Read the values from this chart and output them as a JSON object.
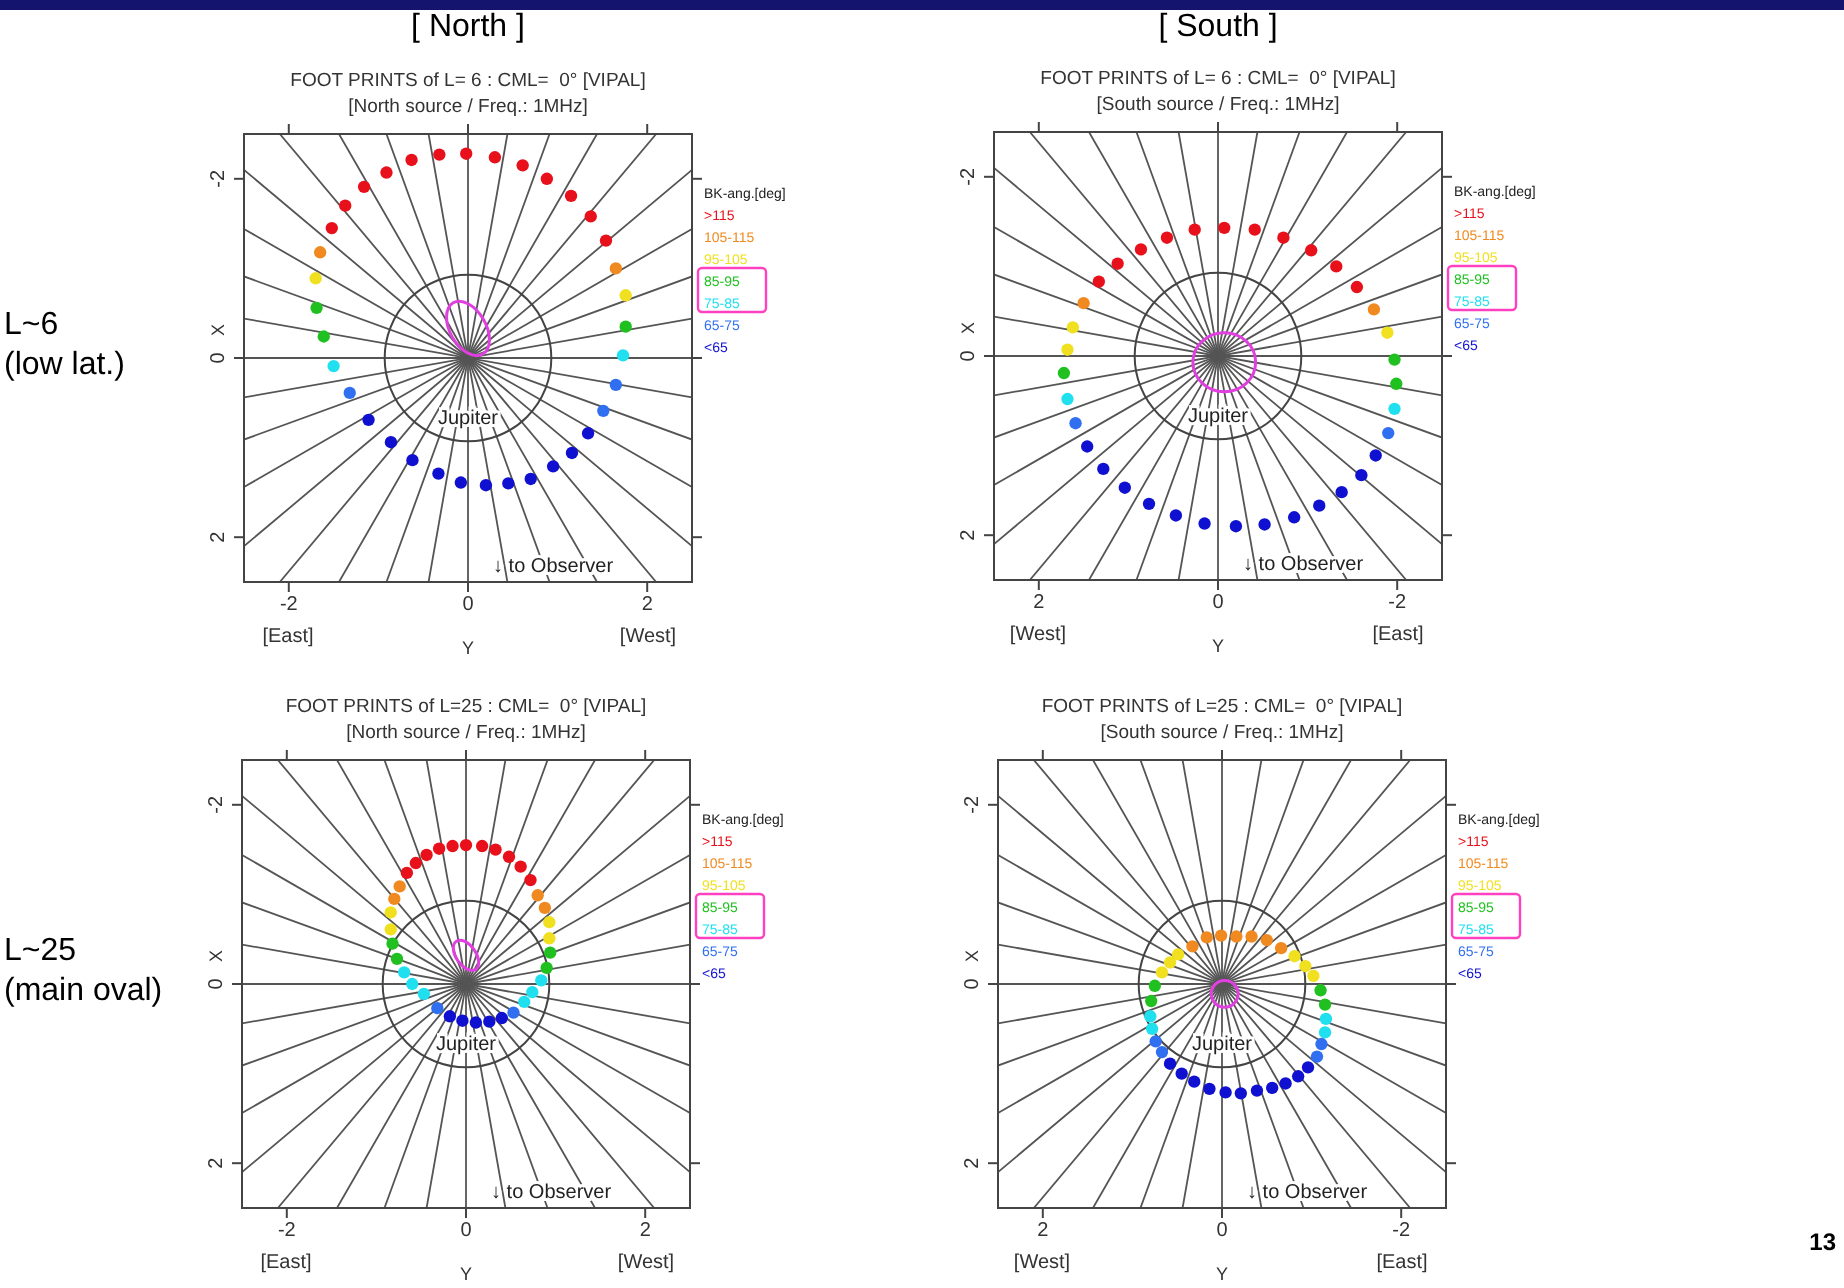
{
  "chart_data": [
    {
      "type": "scatter",
      "title": "FOOT PRINTS of L= 6 : CML=  0° [VIPAL]",
      "subtitle": "[North source / Freq.: 1MHz]",
      "xlabel": "Y",
      "ylabel": "X",
      "xlim": [
        -2.5,
        2.5
      ],
      "ylim": [
        2.5,
        -2.5
      ],
      "xticks": [
        -2,
        0,
        2
      ],
      "yticks": [
        -2,
        0,
        2
      ],
      "legend": "right",
      "legend_title": "BK-ang.[deg]",
      "marker": "circle",
      "annotations": [
        "[East]",
        "[West]",
        "[ North ]",
        "L~6",
        "(low lat.)",
        "Jupiter",
        "↓ to Observer"
      ],
      "series": [
        {
          "type": "line",
          "marker": "none",
          "color": "#555555",
          "x": [
            2.5,
            -2.5
          ],
          "values": [
            0,
            0
          ]
        },
        {
          "type": "line",
          "marker": "none",
          "color": "#555555",
          "x": [
            2.5,
            -2.5
          ],
          "values": [
            0.44,
            -0.44
          ]
        },
        {
          "type": "line",
          "marker": "none",
          "color": "#555555",
          "x": [
            2.5,
            -2.5
          ],
          "values": [
            0.91,
            -0.91
          ]
        },
        {
          "type": "line",
          "marker": "none",
          "color": "#555555",
          "x": [
            2.5,
            -2.5
          ],
          "values": [
            1.44,
            -1.44
          ]
        },
        {
          "type": "line",
          "marker": "none",
          "color": "#555555",
          "x": [
            2.5,
            -2.5
          ],
          "values": [
            2.1,
            -2.1
          ]
        },
        {
          "type": "line",
          "marker": "none",
          "color": "#555555",
          "x": [
            2.1,
            -2.1
          ],
          "values": [
            2.5,
            -2.5
          ]
        },
        {
          "type": "line",
          "marker": "none",
          "color": "#555555",
          "x": [
            1.44,
            -1.44
          ],
          "values": [
            2.5,
            -2.5
          ]
        },
        {
          "type": "line",
          "marker": "none",
          "color": "#555555",
          "x": [
            0.91,
            -0.91
          ],
          "values": [
            2.5,
            -2.5
          ]
        },
        {
          "type": "line",
          "marker": "none",
          "color": "#555555",
          "x": [
            0.44,
            -0.44
          ],
          "values": [
            2.5,
            -2.5
          ]
        },
        {
          "type": "line",
          "marker": "none",
          "color": "#555555",
          "x": [
            0,
            0
          ],
          "values": [
            2.5,
            -2.5
          ]
        },
        {
          "type": "line",
          "marker": "none",
          "color": "#555555",
          "x": [
            -0.44,
            0.44
          ],
          "values": [
            2.5,
            -2.5
          ]
        },
        {
          "type": "line",
          "marker": "none",
          "color": "#555555",
          "x": [
            -0.91,
            0.91
          ],
          "values": [
            2.5,
            -2.5
          ]
        },
        {
          "type": "line",
          "marker": "none",
          "color": "#555555",
          "x": [
            -1.44,
            1.44
          ],
          "values": [
            2.5,
            -2.5
          ]
        },
        {
          "type": "line",
          "marker": "none",
          "color": "#555555",
          "x": [
            -2.1,
            2.1
          ],
          "values": [
            2.5,
            -2.5
          ]
        },
        {
          "type": "line",
          "marker": "none",
          "color": "#555555",
          "x": [
            -2.5,
            2.5
          ],
          "values": [
            2.1,
            -2.1
          ]
        },
        {
          "type": "line",
          "marker": "none",
          "color": "#555555",
          "x": [
            -2.5,
            2.5
          ],
          "values": [
            1.44,
            -1.44
          ]
        },
        {
          "type": "line",
          "marker": "none",
          "color": "#555555",
          "x": [
            -2.5,
            2.5
          ],
          "values": [
            0.91,
            -0.91
          ]
        },
        {
          "type": "line",
          "marker": "none",
          "color": "#555555",
          "x": [
            -2.5,
            2.5
          ],
          "values": [
            0.44,
            -0.44
          ]
        },
        {
          "name": ">115",
          "color": "#e8101a",
          "x": [
            -1.52,
            -1.37,
            -1.16,
            -0.91,
            -0.63,
            -0.32,
            -0.02,
            0.3,
            0.61,
            0.88,
            1.15,
            1.37,
            1.54
          ],
          "values": [
            -1.45,
            -1.7,
            -1.91,
            -2.07,
            -2.21,
            -2.27,
            -2.28,
            -2.24,
            -2.15,
            -2.0,
            -1.81,
            -1.58,
            -1.31
          ]
        },
        {
          "name": "105-115",
          "color": "#f08a20",
          "x": [
            -1.65,
            1.65
          ],
          "values": [
            -1.18,
            -1.0
          ]
        },
        {
          "name": "95-105",
          "color": "#f0e020",
          "x": [
            -1.7,
            1.76
          ],
          "values": [
            -0.89,
            -0.7
          ]
        },
        {
          "name": "85-95",
          "color": "#20c020",
          "x": [
            -1.69,
            -1.61,
            1.76
          ],
          "values": [
            -0.56,
            -0.24,
            -0.35
          ]
        },
        {
          "name": "75-85",
          "color": "#20e0f0",
          "x": [
            -1.5,
            1.73
          ],
          "values": [
            0.09,
            -0.03
          ]
        },
        {
          "name": "65-75",
          "color": "#3070f0",
          "x": [
            -1.32,
            1.65,
            1.51
          ],
          "values": [
            0.39,
            0.3,
            0.59
          ]
        },
        {
          "name": "<65",
          "color": "#1010d0",
          "x": [
            -1.11,
            -0.86,
            -0.62,
            -0.33,
            -0.08,
            0.2,
            0.45,
            0.7,
            0.95,
            1.16,
            1.34
          ],
          "values": [
            0.69,
            0.94,
            1.14,
            1.29,
            1.39,
            1.42,
            1.4,
            1.35,
            1.21,
            1.06,
            0.84
          ]
        }
      ]
    },
    {
      "type": "scatter",
      "title": "FOOT PRINTS of L= 6 : CML=  0° [VIPAL]",
      "subtitle": "[South source / Freq.: 1MHz]",
      "xlabel": "Y",
      "ylabel": "X",
      "xlim": [
        2.5,
        -2.5
      ],
      "ylim": [
        2.5,
        -2.5
      ],
      "xticks": [
        2,
        0,
        -2
      ],
      "yticks": [
        -2,
        0,
        2
      ],
      "legend": "right",
      "legend_title": "BK-ang.[deg]",
      "marker": "circle",
      "annotations": [
        "[West]",
        "[East]",
        "[ South ]",
        "Jupiter",
        "↓ to Observer"
      ],
      "series": [
        {
          "type": "line",
          "marker": "none",
          "color": "#555555",
          "x": [
            2.5,
            -2.5
          ],
          "values": [
            0,
            0
          ]
        },
        {
          "type": "line",
          "marker": "none",
          "color": "#555555",
          "x": [
            2.5,
            -2.5
          ],
          "values": [
            0.44,
            -0.44
          ]
        },
        {
          "type": "line",
          "marker": "none",
          "color": "#555555",
          "x": [
            2.5,
            -2.5
          ],
          "values": [
            0.91,
            -0.91
          ]
        },
        {
          "type": "line",
          "marker": "none",
          "color": "#555555",
          "x": [
            2.5,
            -2.5
          ],
          "values": [
            1.44,
            -1.44
          ]
        },
        {
          "type": "line",
          "marker": "none",
          "color": "#555555",
          "x": [
            2.5,
            -2.5
          ],
          "values": [
            2.1,
            -2.1
          ]
        },
        {
          "type": "line",
          "marker": "none",
          "color": "#555555",
          "x": [
            2.1,
            -2.1
          ],
          "values": [
            2.5,
            -2.5
          ]
        },
        {
          "type": "line",
          "marker": "none",
          "color": "#555555",
          "x": [
            1.44,
            -1.44
          ],
          "values": [
            2.5,
            -2.5
          ]
        },
        {
          "type": "line",
          "marker": "none",
          "color": "#555555",
          "x": [
            0.91,
            -0.91
          ],
          "values": [
            2.5,
            -2.5
          ]
        },
        {
          "type": "line",
          "marker": "none",
          "color": "#555555",
          "x": [
            0.44,
            -0.44
          ],
          "values": [
            2.5,
            -2.5
          ]
        },
        {
          "type": "line",
          "marker": "none",
          "color": "#555555",
          "x": [
            0,
            0
          ],
          "values": [
            2.5,
            -2.5
          ]
        },
        {
          "type": "line",
          "marker": "none",
          "color": "#555555",
          "x": [
            -0.44,
            0.44
          ],
          "values": [
            2.5,
            -2.5
          ]
        },
        {
          "type": "line",
          "marker": "none",
          "color": "#555555",
          "x": [
            -0.91,
            0.91
          ],
          "values": [
            2.5,
            -2.5
          ]
        },
        {
          "type": "line",
          "marker": "none",
          "color": "#555555",
          "x": [
            -1.44,
            1.44
          ],
          "values": [
            2.5,
            -2.5
          ]
        },
        {
          "type": "line",
          "marker": "none",
          "color": "#555555",
          "x": [
            -2.1,
            2.1
          ],
          "values": [
            2.5,
            -2.5
          ]
        },
        {
          "type": "line",
          "marker": "none",
          "color": "#555555",
          "x": [
            -2.5,
            2.5
          ],
          "values": [
            2.1,
            -2.1
          ]
        },
        {
          "type": "line",
          "marker": "none",
          "color": "#555555",
          "x": [
            -2.5,
            2.5
          ],
          "values": [
            1.44,
            -1.44
          ]
        },
        {
          "type": "line",
          "marker": "none",
          "color": "#555555",
          "x": [
            -2.5,
            2.5
          ],
          "values": [
            0.91,
            -0.91
          ]
        },
        {
          "type": "line",
          "marker": "none",
          "color": "#555555",
          "x": [
            -2.5,
            2.5
          ],
          "values": [
            0.44,
            -0.44
          ]
        },
        {
          "name": ">115",
          "color": "#e8101a",
          "x": [
            1.33,
            1.12,
            0.86,
            0.57,
            0.26,
            -0.07,
            -0.41,
            -0.73,
            -1.04,
            -1.32,
            -1.55
          ],
          "values": [
            -0.83,
            -1.03,
            -1.19,
            -1.32,
            -1.41,
            -1.43,
            -1.41,
            -1.32,
            -1.18,
            -1.0,
            -0.77
          ]
        },
        {
          "name": "105-115",
          "color": "#f08a20",
          "x": [
            1.5,
            -1.74
          ],
          "values": [
            -0.59,
            -0.52
          ]
        },
        {
          "name": "95-105",
          "color": "#f0e020",
          "x": [
            1.62,
            1.68,
            -1.89
          ],
          "values": [
            -0.32,
            -0.07,
            -0.26
          ]
        },
        {
          "name": "85-95",
          "color": "#20c020",
          "x": [
            1.72,
            -1.97,
            -1.99
          ],
          "values": [
            0.19,
            0.04,
            0.31
          ]
        },
        {
          "name": "75-85",
          "color": "#20e0f0",
          "x": [
            1.68,
            -1.97
          ],
          "values": [
            0.48,
            0.59
          ]
        },
        {
          "name": "65-75",
          "color": "#3070f0",
          "x": [
            1.59,
            -1.9
          ],
          "values": [
            0.75,
            0.86
          ]
        },
        {
          "name": "<65",
          "color": "#1010d0",
          "x": [
            1.46,
            1.28,
            1.04,
            0.77,
            0.47,
            0.15,
            -0.2,
            -0.52,
            -0.85,
            -1.13,
            -1.38,
            -1.6,
            -1.76
          ],
          "values": [
            1.01,
            1.26,
            1.47,
            1.65,
            1.78,
            1.87,
            1.9,
            1.88,
            1.8,
            1.67,
            1.52,
            1.33,
            1.11
          ]
        }
      ]
    },
    {
      "type": "scatter",
      "title": "FOOT PRINTS of L=25 : CML=  0° [VIPAL]",
      "subtitle": "[North source / Freq.: 1MHz]",
      "xlabel": "Y",
      "ylabel": "X",
      "xlim": [
        -2.5,
        2.5
      ],
      "ylim": [
        2.5,
        -2.5
      ],
      "xticks": [
        -2,
        0,
        2
      ],
      "yticks": [
        -2,
        0,
        2
      ],
      "legend": "right",
      "legend_title": "BK-ang.[deg]",
      "marker": "circle",
      "annotations": [
        "[East]",
        "[West]",
        "L~25",
        "(main oval)",
        "Jupiter",
        "↓ to Observer"
      ],
      "series": [
        {
          "type": "line",
          "marker": "none",
          "color": "#555555",
          "x": [
            2.5,
            -2.5
          ],
          "values": [
            0,
            0
          ]
        },
        {
          "type": "line",
          "marker": "none",
          "color": "#555555",
          "x": [
            2.5,
            -2.5
          ],
          "values": [
            0.44,
            -0.44
          ]
        },
        {
          "type": "line",
          "marker": "none",
          "color": "#555555",
          "x": [
            2.5,
            -2.5
          ],
          "values": [
            0.91,
            -0.91
          ]
        },
        {
          "type": "line",
          "marker": "none",
          "color": "#555555",
          "x": [
            2.5,
            -2.5
          ],
          "values": [
            1.44,
            -1.44
          ]
        },
        {
          "type": "line",
          "marker": "none",
          "color": "#555555",
          "x": [
            2.5,
            -2.5
          ],
          "values": [
            2.1,
            -2.1
          ]
        },
        {
          "type": "line",
          "marker": "none",
          "color": "#555555",
          "x": [
            2.1,
            -2.1
          ],
          "values": [
            2.5,
            -2.5
          ]
        },
        {
          "type": "line",
          "marker": "none",
          "color": "#555555",
          "x": [
            1.44,
            -1.44
          ],
          "values": [
            2.5,
            -2.5
          ]
        },
        {
          "type": "line",
          "marker": "none",
          "color": "#555555",
          "x": [
            0.91,
            -0.91
          ],
          "values": [
            2.5,
            -2.5
          ]
        },
        {
          "type": "line",
          "marker": "none",
          "color": "#555555",
          "x": [
            0.44,
            -0.44
          ],
          "values": [
            2.5,
            -2.5
          ]
        },
        {
          "type": "line",
          "marker": "none",
          "color": "#555555",
          "x": [
            0,
            0
          ],
          "values": [
            2.5,
            -2.5
          ]
        },
        {
          "type": "line",
          "marker": "none",
          "color": "#555555",
          "x": [
            -0.44,
            0.44
          ],
          "values": [
            2.5,
            -2.5
          ]
        },
        {
          "type": "line",
          "marker": "none",
          "color": "#555555",
          "x": [
            -0.91,
            0.91
          ],
          "values": [
            2.5,
            -2.5
          ]
        },
        {
          "type": "line",
          "marker": "none",
          "color": "#555555",
          "x": [
            -1.44,
            1.44
          ],
          "values": [
            2.5,
            -2.5
          ]
        },
        {
          "type": "line",
          "marker": "none",
          "color": "#555555",
          "x": [
            -2.1,
            2.1
          ],
          "values": [
            2.5,
            -2.5
          ]
        },
        {
          "type": "line",
          "marker": "none",
          "color": "#555555",
          "x": [
            -2.5,
            2.5
          ],
          "values": [
            2.1,
            -2.1
          ]
        },
        {
          "type": "line",
          "marker": "none",
          "color": "#555555",
          "x": [
            -2.5,
            2.5
          ],
          "values": [
            1.44,
            -1.44
          ]
        },
        {
          "type": "line",
          "marker": "none",
          "color": "#555555",
          "x": [
            -2.5,
            2.5
          ],
          "values": [
            0.91,
            -0.91
          ]
        },
        {
          "type": "line",
          "marker": "none",
          "color": "#555555",
          "x": [
            -2.5,
            2.5
          ],
          "values": [
            0.44,
            -0.44
          ]
        },
        {
          "name": ">115",
          "color": "#e8101a",
          "x": [
            -0.66,
            -0.56,
            -0.44,
            -0.3,
            -0.15,
            0.0,
            0.18,
            0.33,
            0.48,
            0.61,
            0.72
          ],
          "values": [
            -1.24,
            -1.35,
            -1.44,
            -1.51,
            -1.54,
            -1.55,
            -1.54,
            -1.5,
            -1.42,
            -1.31,
            -1.16
          ]
        },
        {
          "name": "105-115",
          "color": "#f08a20",
          "x": [
            -0.74,
            -0.8,
            0.8,
            0.88
          ],
          "values": [
            -1.09,
            -0.95,
            -0.99,
            -0.85
          ]
        },
        {
          "name": "95-105",
          "color": "#f0e020",
          "x": [
            -0.84,
            -0.84,
            0.93,
            0.93
          ],
          "values": [
            -0.8,
            -0.61,
            -0.69,
            -0.51
          ]
        },
        {
          "name": "85-95",
          "color": "#20c020",
          "x": [
            -0.82,
            -0.77,
            0.94,
            0.9
          ],
          "values": [
            -0.45,
            -0.28,
            -0.35,
            -0.18
          ]
        },
        {
          "name": "75-85",
          "color": "#20e0f0",
          "x": [
            -0.69,
            -0.6,
            -0.47,
            0.84,
            0.74,
            0.65
          ],
          "values": [
            -0.13,
            0.0,
            0.11,
            -0.04,
            0.09,
            0.2
          ]
        },
        {
          "name": "65-75",
          "color": "#3070f0",
          "x": [
            -0.32,
            0.53
          ],
          "values": [
            0.27,
            0.32
          ]
        },
        {
          "name": "<65",
          "color": "#1010d0",
          "x": [
            -0.18,
            -0.04,
            0.11,
            0.26,
            0.4
          ],
          "values": [
            0.36,
            0.41,
            0.43,
            0.42,
            0.38
          ]
        }
      ]
    },
    {
      "type": "scatter",
      "title": "FOOT PRINTS of L=25 : CML=  0° [VIPAL]",
      "subtitle": "[South source / Freq.: 1MHz]",
      "xlabel": "Y",
      "ylabel": "X",
      "xlim": [
        2.5,
        -2.5
      ],
      "ylim": [
        2.5,
        -2.5
      ],
      "xticks": [
        2,
        0,
        -2
      ],
      "yticks": [
        -2,
        0,
        2
      ],
      "legend": "right",
      "legend_title": "BK-ang.[deg]",
      "marker": "circle",
      "annotations": [
        "[West]",
        "[East]",
        "13",
        "Jupiter",
        "↓ to Observer"
      ],
      "series": [
        {
          "type": "line",
          "marker": "none",
          "color": "#555555",
          "x": [
            2.5,
            -2.5
          ],
          "values": [
            0,
            0
          ]
        },
        {
          "type": "line",
          "marker": "none",
          "color": "#555555",
          "x": [
            2.5,
            -2.5
          ],
          "values": [
            0.44,
            -0.44
          ]
        },
        {
          "type": "line",
          "marker": "none",
          "color": "#555555",
          "x": [
            2.5,
            -2.5
          ],
          "values": [
            0.91,
            -0.91
          ]
        },
        {
          "type": "line",
          "marker": "none",
          "color": "#555555",
          "x": [
            2.5,
            -2.5
          ],
          "values": [
            1.44,
            -1.44
          ]
        },
        {
          "type": "line",
          "marker": "none",
          "color": "#555555",
          "x": [
            2.5,
            -2.5
          ],
          "values": [
            2.1,
            -2.1
          ]
        },
        {
          "type": "line",
          "marker": "none",
          "color": "#555555",
          "x": [
            2.1,
            -2.1
          ],
          "values": [
            2.5,
            -2.5
          ]
        },
        {
          "type": "line",
          "marker": "none",
          "color": "#555555",
          "x": [
            1.44,
            -1.44
          ],
          "values": [
            2.5,
            -2.5
          ]
        },
        {
          "type": "line",
          "marker": "none",
          "color": "#555555",
          "x": [
            0.91,
            -0.91
          ],
          "values": [
            2.5,
            -2.5
          ]
        },
        {
          "type": "line",
          "marker": "none",
          "color": "#555555",
          "x": [
            0.44,
            -0.44
          ],
          "values": [
            2.5,
            -2.5
          ]
        },
        {
          "type": "line",
          "marker": "none",
          "color": "#555555",
          "x": [
            0,
            0
          ],
          "values": [
            2.5,
            -2.5
          ]
        },
        {
          "type": "line",
          "marker": "none",
          "color": "#555555",
          "x": [
            -0.44,
            0.44
          ],
          "values": [
            2.5,
            -2.5
          ]
        },
        {
          "type": "line",
          "marker": "none",
          "color": "#555555",
          "x": [
            -0.91,
            0.91
          ],
          "values": [
            2.5,
            -2.5
          ]
        },
        {
          "type": "line",
          "marker": "none",
          "color": "#555555",
          "x": [
            -1.44,
            1.44
          ],
          "values": [
            2.5,
            -2.5
          ]
        },
        {
          "type": "line",
          "marker": "none",
          "color": "#555555",
          "x": [
            -2.1,
            2.1
          ],
          "values": [
            2.5,
            -2.5
          ]
        },
        {
          "type": "line",
          "marker": "none",
          "color": "#555555",
          "x": [
            -2.5,
            2.5
          ],
          "values": [
            2.1,
            -2.1
          ]
        },
        {
          "type": "line",
          "marker": "none",
          "color": "#555555",
          "x": [
            -2.5,
            2.5
          ],
          "values": [
            1.44,
            -1.44
          ]
        },
        {
          "type": "line",
          "marker": "none",
          "color": "#555555",
          "x": [
            -2.5,
            2.5
          ],
          "values": [
            0.91,
            -0.91
          ]
        },
        {
          "type": "line",
          "marker": "none",
          "color": "#555555",
          "x": [
            -2.5,
            2.5
          ],
          "values": [
            0.44,
            -0.44
          ]
        },
        {
          "name": ">115",
          "color": "#e8101a"
        },
        {
          "name": "105-115",
          "color": "#f08a20",
          "x": [
            0.33,
            0.17,
            0.01,
            -0.16,
            -0.33,
            -0.5,
            -0.66
          ],
          "values": [
            -0.42,
            -0.52,
            -0.54,
            -0.53,
            -0.53,
            -0.49,
            -0.4
          ]
        },
        {
          "name": "95-105",
          "color": "#f0e020",
          "x": [
            0.49,
            0.58,
            0.67,
            -0.81,
            -0.93,
            -1.02
          ],
          "values": [
            -0.33,
            -0.24,
            -0.13,
            -0.31,
            -0.2,
            -0.09
          ]
        },
        {
          "name": "85-95",
          "color": "#20c020",
          "x": [
            0.75,
            0.79,
            -1.1,
            -1.15
          ],
          "values": [
            0.02,
            0.19,
            0.07,
            0.23
          ]
        },
        {
          "name": "75-85",
          "color": "#20e0f0",
          "x": [
            0.8,
            0.78,
            -1.16,
            -1.15
          ],
          "values": [
            0.36,
            0.5,
            0.39,
            0.54
          ]
        },
        {
          "name": "65-75",
          "color": "#3070f0",
          "x": [
            0.74,
            0.67,
            -1.11,
            -1.06
          ],
          "values": [
            0.64,
            0.76,
            0.67,
            0.81
          ]
        },
        {
          "name": "<65",
          "color": "#1010d0",
          "x": [
            0.58,
            0.45,
            0.31,
            0.14,
            -0.04,
            -0.21,
            -0.39,
            -0.56,
            -0.71,
            -0.85,
            -0.96
          ],
          "values": [
            0.89,
            1.0,
            1.09,
            1.17,
            1.21,
            1.22,
            1.19,
            1.16,
            1.11,
            1.03,
            0.93
          ]
        }
      ]
    }
  ]
}
